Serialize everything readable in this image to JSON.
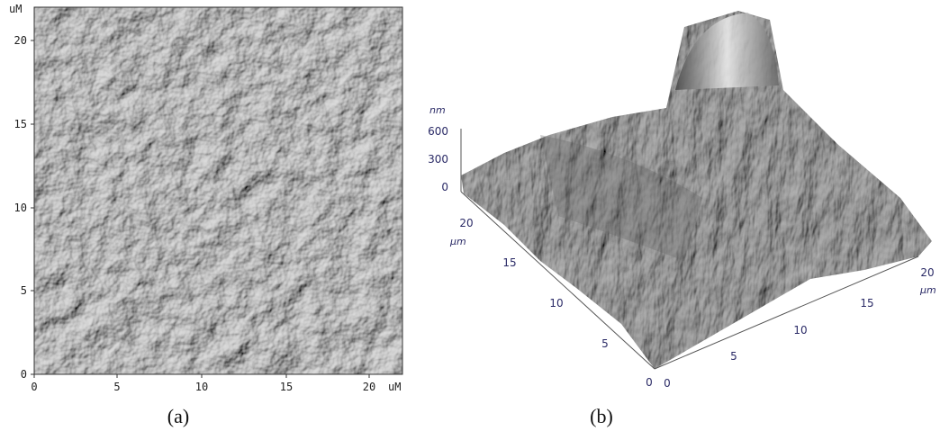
{
  "panel_a": {
    "unit_y": "uM",
    "unit_x": "uM",
    "yticks": [
      0,
      5,
      10,
      15,
      20
    ],
    "xticks": [
      0,
      5,
      10,
      15,
      20
    ],
    "caption": "(a)"
  },
  "panel_b": {
    "z_unit": "nm",
    "zticks": [
      0,
      300,
      600
    ],
    "left_ticks": [
      0,
      5,
      10,
      15,
      20
    ],
    "left_unit": "μm",
    "right_ticks": [
      0,
      5,
      10,
      15,
      20
    ],
    "right_unit": "μm",
    "caption": "(b)"
  }
}
